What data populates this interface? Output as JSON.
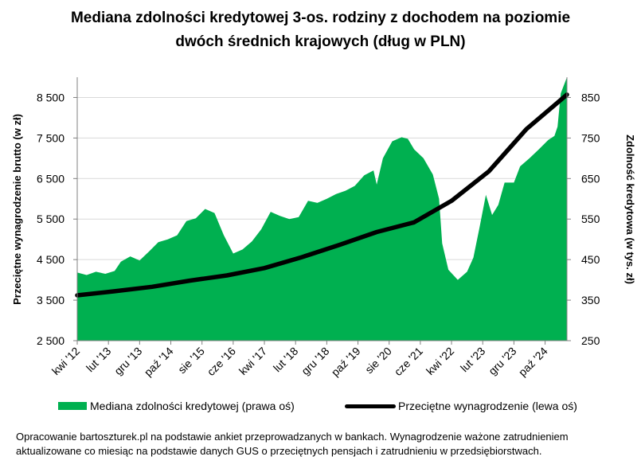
{
  "title_lines": [
    "Mediana zdolności kredytowej 3-os. rodziny z dochodem na poziomie",
    "dwóch średnich krajowych (dług w PLN)"
  ],
  "legend": {
    "area_label": "Mediana zdolności kredytowej (prawa oś)",
    "line_label": "Przeciętne wynagrodzenie (lewa oś)"
  },
  "footnote": "Opracowanie bartoszturek.pl na podstawie ankiet przeprowadzanych w bankach. Wynagrodzenie ważone zatrudnieniem aktualizowane co miesiąc na podstawie danych GUS o przeciętnych pensjach i zatrudnieniu w przedsiębiorstwach.",
  "colors": {
    "area": "#00b050",
    "line": "#000000",
    "grid": "#d9d9d9"
  },
  "chart_data": {
    "type": "area+line",
    "title": "Mediana zdolności kredytowej 3-os. rodziny z dochodem na poziomie dwóch średnich krajowych (dług w PLN)",
    "x_tick_labels": [
      "kwi '12",
      "lut '13",
      "gru '13",
      "paź '14",
      "sie '15",
      "cze '16",
      "kwi '17",
      "lut '18",
      "gru '18",
      "paź '19",
      "sie '20",
      "cze '21",
      "kwi '22",
      "lut '23",
      "gru '23",
      "paź '24"
    ],
    "x_start": "2012-04",
    "x_end": "2025-05",
    "y_left": {
      "label": "Przeciętne wynagrodzenie brutto (w zł)",
      "ylim": [
        2500,
        9000
      ],
      "ticks": [
        2500,
        3500,
        4500,
        5500,
        6500,
        7500,
        8500
      ],
      "tick_labels": [
        "2 500",
        "3 500",
        "4 500",
        "5 500",
        "6 500",
        "7 500",
        "8 500"
      ]
    },
    "y_right": {
      "label": "Zdolność kredytowa (w tys. zł)",
      "ylim": [
        250,
        900
      ],
      "ticks": [
        250,
        350,
        450,
        550,
        650,
        750,
        850
      ],
      "tick_labels": [
        "250",
        "350",
        "450",
        "550",
        "650",
        "750",
        "850"
      ]
    },
    "series": [
      {
        "name": "Mediana zdolności kredytowej (prawa oś)",
        "axis": "right",
        "kind": "area",
        "points": [
          [
            "2012-04",
            418
          ],
          [
            "2012-07",
            412
          ],
          [
            "2012-10",
            420
          ],
          [
            "2013-01",
            415
          ],
          [
            "2013-04",
            422
          ],
          [
            "2013-06",
            445
          ],
          [
            "2013-09",
            458
          ],
          [
            "2013-12",
            448
          ],
          [
            "2014-03",
            470
          ],
          [
            "2014-06",
            493
          ],
          [
            "2014-09",
            500
          ],
          [
            "2014-12",
            510
          ],
          [
            "2015-03",
            545
          ],
          [
            "2015-06",
            552
          ],
          [
            "2015-09",
            575
          ],
          [
            "2015-12",
            565
          ],
          [
            "2016-03",
            510
          ],
          [
            "2016-06",
            465
          ],
          [
            "2016-09",
            475
          ],
          [
            "2016-12",
            495
          ],
          [
            "2017-03",
            525
          ],
          [
            "2017-06",
            568
          ],
          [
            "2017-09",
            558
          ],
          [
            "2017-12",
            550
          ],
          [
            "2018-03",
            555
          ],
          [
            "2018-06",
            595
          ],
          [
            "2018-09",
            590
          ],
          [
            "2018-12",
            600
          ],
          [
            "2019-03",
            612
          ],
          [
            "2019-06",
            620
          ],
          [
            "2019-09",
            632
          ],
          [
            "2019-12",
            658
          ],
          [
            "2020-03",
            670
          ],
          [
            "2020-04",
            635
          ],
          [
            "2020-06",
            700
          ],
          [
            "2020-09",
            742
          ],
          [
            "2020-12",
            752
          ],
          [
            "2021-02",
            748
          ],
          [
            "2021-04",
            722
          ],
          [
            "2021-07",
            700
          ],
          [
            "2021-10",
            660
          ],
          [
            "2021-12",
            600
          ],
          [
            "2022-01",
            490
          ],
          [
            "2022-03",
            425
          ],
          [
            "2022-06",
            400
          ],
          [
            "2022-09",
            420
          ],
          [
            "2022-11",
            455
          ],
          [
            "2023-01",
            530
          ],
          [
            "2023-03",
            610
          ],
          [
            "2023-05",
            560
          ],
          [
            "2023-07",
            585
          ],
          [
            "2023-09",
            640
          ],
          [
            "2023-12",
            640
          ],
          [
            "2024-02",
            680
          ],
          [
            "2024-05",
            700
          ],
          [
            "2024-08",
            722
          ],
          [
            "2024-11",
            745
          ],
          [
            "2025-01",
            755
          ],
          [
            "2025-02",
            778
          ],
          [
            "2025-03",
            860
          ],
          [
            "2025-05",
            900
          ]
        ]
      },
      {
        "name": "Przeciętne wynagrodzenie (lewa oś)",
        "axis": "left",
        "kind": "line",
        "points": [
          [
            "2012-04",
            3620
          ],
          [
            "2013-04",
            3720
          ],
          [
            "2014-04",
            3830
          ],
          [
            "2015-04",
            3980
          ],
          [
            "2016-04",
            4110
          ],
          [
            "2017-04",
            4290
          ],
          [
            "2018-04",
            4560
          ],
          [
            "2019-04",
            4860
          ],
          [
            "2020-04",
            5180
          ],
          [
            "2021-04",
            5420
          ],
          [
            "2022-04",
            5950
          ],
          [
            "2023-04",
            6680
          ],
          [
            "2024-04",
            7720
          ],
          [
            "2025-05",
            8570
          ]
        ]
      }
    ],
    "grid": "horizontal",
    "legend_position": "bottom"
  }
}
